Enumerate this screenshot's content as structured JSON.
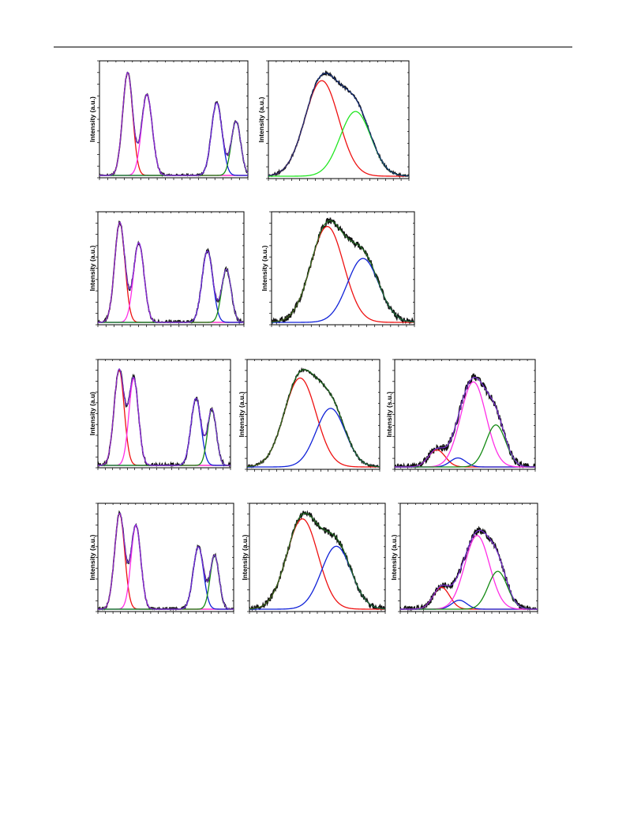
{
  "page": {
    "background": "#ffffff"
  },
  "colors": {
    "data": "#111111",
    "envelope": "#7a2fd6",
    "red": "#ee1111",
    "magenta": "#ff2ee6",
    "blue": "#1022d8",
    "green": "#138a13",
    "bright_green": "#22e622",
    "dark_green": "#1f6a1f",
    "navy": "#16307a"
  },
  "chart_data": [
    {
      "id": "a1",
      "type": "line",
      "axis_title": "Intensity (a.u.)",
      "xlim": [
        0,
        100
      ],
      "ylim": [
        0,
        1.08
      ],
      "noise": 0.012,
      "dataColor": "data",
      "envColor": "envelope",
      "components": [
        {
          "color": "red",
          "center": 19,
          "amplitude": 0.99,
          "width": 3.4
        },
        {
          "color": "magenta",
          "center": 32,
          "amplitude": 0.78,
          "width": 3.6
        },
        {
          "color": "blue",
          "center": 79,
          "amplitude": 0.7,
          "width": 3.6
        },
        {
          "color": "green",
          "center": 92,
          "amplitude": 0.52,
          "width": 3.2
        }
      ]
    },
    {
      "id": "a2",
      "type": "line",
      "axis_title": "Intensity (a.u.)",
      "xlim": [
        0,
        100
      ],
      "ylim": [
        0,
        1.1
      ],
      "noise": 0.012,
      "dataColor": "data",
      "envColor": "navy",
      "components": [
        {
          "color": "red",
          "center": 38,
          "amplitude": 0.93,
          "width": 12
        },
        {
          "color": "bright_green",
          "center": 62,
          "amplitude": 0.63,
          "width": 11
        }
      ]
    },
    {
      "id": "b1",
      "type": "line",
      "axis_title": "Intensity (a.u.)",
      "xlim": [
        0,
        100
      ],
      "ylim": [
        0,
        1.06
      ],
      "noise": 0.018,
      "dataColor": "data",
      "envColor": "envelope",
      "components": [
        {
          "color": "red",
          "center": 15,
          "amplitude": 0.98,
          "width": 3.5
        },
        {
          "color": "magenta",
          "center": 28,
          "amplitude": 0.78,
          "width": 3.6
        },
        {
          "color": "blue",
          "center": 75,
          "amplitude": 0.7,
          "width": 3.7
        },
        {
          "color": "green",
          "center": 88,
          "amplitude": 0.52,
          "width": 3.3
        }
      ]
    },
    {
      "id": "b2",
      "type": "line",
      "axis_title": "Intensity (a.u.)",
      "xlim": [
        0,
        100
      ],
      "ylim": [
        0,
        1.05
      ],
      "noise": 0.03,
      "dataColor": "data",
      "envColor": "dark_green",
      "components": [
        {
          "color": "red",
          "center": 39,
          "amplitude": 0.93,
          "width": 11.5
        },
        {
          "color": "blue",
          "center": 64,
          "amplitude": 0.62,
          "width": 11
        }
      ]
    },
    {
      "id": "c1",
      "type": "line",
      "axis_title": "Intensity (a.u)",
      "xlim": [
        0,
        100
      ],
      "ylim": [
        0,
        1.05
      ],
      "noise": 0.02,
      "dataColor": "data",
      "envColor": "envelope",
      "components": [
        {
          "color": "red",
          "center": 16,
          "amplitude": 0.97,
          "width": 3.8
        },
        {
          "color": "magenta",
          "center": 27,
          "amplitude": 0.88,
          "width": 3.6
        },
        {
          "color": "blue",
          "center": 74,
          "amplitude": 0.68,
          "width": 3.8
        },
        {
          "color": "green",
          "center": 86,
          "amplitude": 0.57,
          "width": 3.3
        }
      ]
    },
    {
      "id": "c2",
      "type": "line",
      "axis_title": "Intensity (a.u.)",
      "xlim": [
        0,
        100
      ],
      "ylim": [
        0,
        1.04
      ],
      "noise": 0.012,
      "dataColor": "data",
      "envColor": "dark_green",
      "components": [
        {
          "color": "red",
          "center": 40,
          "amplitude": 0.88,
          "width": 12
        },
        {
          "color": "blue",
          "center": 63,
          "amplitude": 0.58,
          "width": 11
        }
      ]
    },
    {
      "id": "c3",
      "type": "line",
      "axis_title": "Intensity (s.u.)",
      "xlim": [
        0,
        100
      ],
      "ylim": [
        0,
        1.05
      ],
      "noise": 0.035,
      "dataColor": "data",
      "envColor": "envelope",
      "components": [
        {
          "color": "red",
          "center": 30,
          "amplitude": 0.17,
          "width": 6
        },
        {
          "color": "blue",
          "center": 45,
          "amplitude": 0.09,
          "width": 5.5
        },
        {
          "color": "magenta",
          "center": 56,
          "amplitude": 0.85,
          "width": 9
        },
        {
          "color": "green",
          "center": 72,
          "amplitude": 0.42,
          "width": 7
        }
      ]
    },
    {
      "id": "d1",
      "type": "line",
      "axis_title": "Intensity (a.u.)",
      "xlim": [
        0,
        100
      ],
      "ylim": [
        0,
        1.06
      ],
      "noise": 0.015,
      "dataColor": "data",
      "envColor": "envelope",
      "components": [
        {
          "color": "red",
          "center": 16,
          "amplitude": 0.98,
          "width": 3.7
        },
        {
          "color": "magenta",
          "center": 28,
          "amplitude": 0.86,
          "width": 3.6
        },
        {
          "color": "blue",
          "center": 74,
          "amplitude": 0.64,
          "width": 3.8
        },
        {
          "color": "green",
          "center": 86,
          "amplitude": 0.55,
          "width": 3.3
        }
      ]
    },
    {
      "id": "d2",
      "type": "line",
      "axis_title": "Intensity (a.u.)",
      "xlim": [
        0,
        100
      ],
      "ylim": [
        0,
        1.02
      ],
      "noise": 0.03,
      "dataColor": "data",
      "envColor": "dark_green",
      "components": [
        {
          "color": "red",
          "center": 39,
          "amplitude": 0.89,
          "width": 11.5
        },
        {
          "color": "blue",
          "center": 64,
          "amplitude": 0.62,
          "width": 11
        }
      ]
    },
    {
      "id": "d3",
      "type": "line",
      "axis_title": "Intensity (a.u.)",
      "xlim": [
        0,
        100
      ],
      "ylim": [
        0,
        1.04
      ],
      "noise": 0.03,
      "dataColor": "data",
      "envColor": "envelope",
      "components": [
        {
          "color": "red",
          "center": 30,
          "amplitude": 0.22,
          "width": 6
        },
        {
          "color": "blue",
          "center": 43,
          "amplitude": 0.09,
          "width": 5.5
        },
        {
          "color": "magenta",
          "center": 56,
          "amplitude": 0.74,
          "width": 9
        },
        {
          "color": "green",
          "center": 71,
          "amplitude": 0.38,
          "width": 7
        }
      ]
    }
  ]
}
